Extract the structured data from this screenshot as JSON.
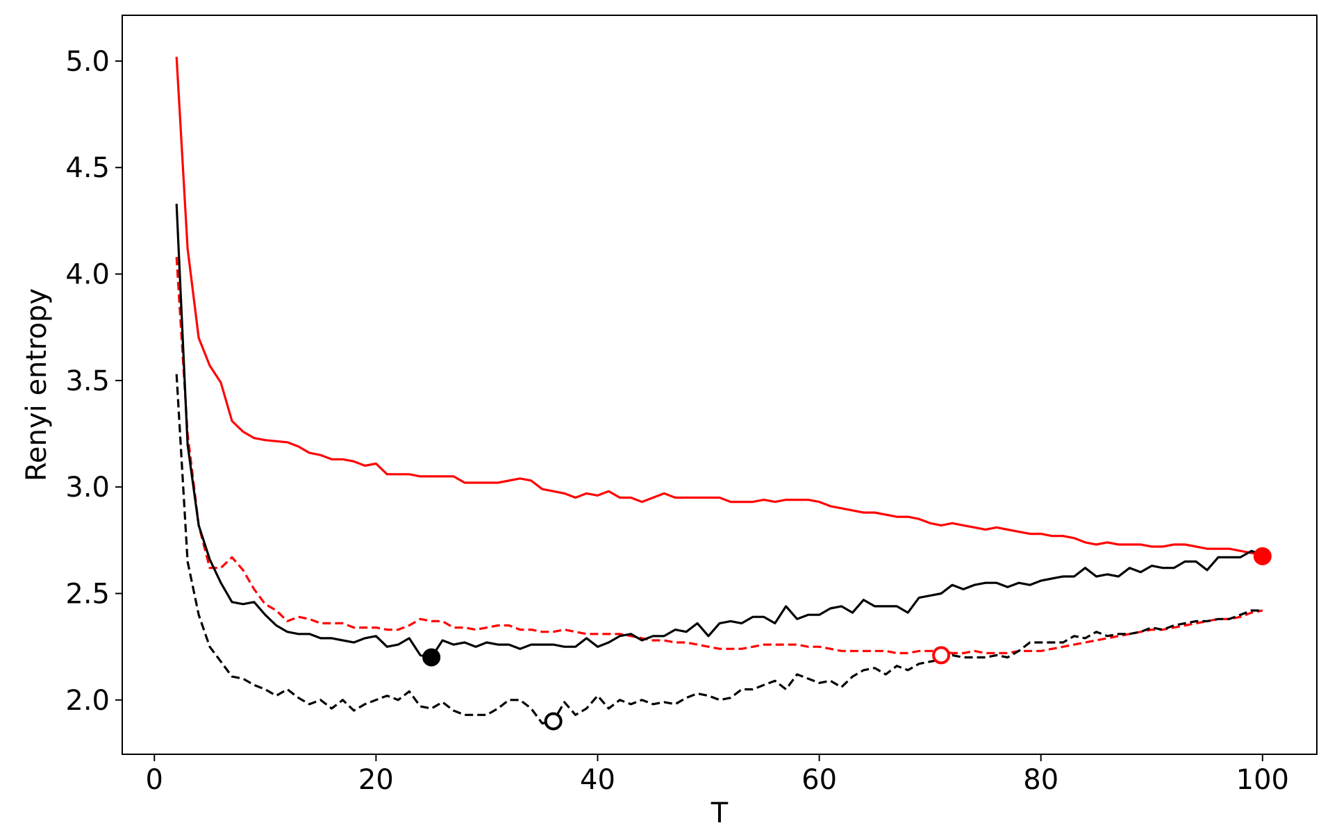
{
  "chart_data": {
    "type": "line",
    "title": "",
    "xlabel": "T",
    "ylabel": "Renyi entropy",
    "xlim": [
      -2.9,
      104.9
    ],
    "ylim": [
      1.745,
      5.215
    ],
    "xticks": [
      0,
      20,
      40,
      60,
      80,
      100
    ],
    "yticks": [
      2.0,
      2.5,
      3.0,
      3.5,
      4.0,
      4.5,
      5.0
    ],
    "grid": false,
    "colors": {
      "red": "#ff0000",
      "black": "#000000"
    },
    "series": [
      {
        "color": "#ff0000",
        "style": "solid",
        "x": [
          2,
          3,
          4,
          5,
          6,
          7,
          8,
          9,
          10,
          12,
          13,
          14,
          15,
          16,
          17,
          18,
          19,
          20,
          21,
          22,
          23,
          24,
          25,
          26,
          27,
          28,
          29,
          30,
          31,
          32,
          33,
          34,
          35,
          36,
          37,
          38,
          39,
          40,
          41,
          42,
          43,
          44,
          45,
          46,
          47,
          48,
          49,
          50,
          51,
          52,
          53,
          54,
          55,
          56,
          57,
          58,
          59,
          60,
          61,
          62,
          63,
          64,
          65,
          66,
          67,
          68,
          69,
          70,
          71,
          72,
          73,
          74,
          75,
          76,
          77,
          78,
          79,
          80,
          81,
          82,
          83,
          84,
          85,
          86,
          87,
          88,
          89,
          90,
          91,
          92,
          93,
          94,
          95,
          96,
          97,
          98,
          99,
          100
        ],
        "y": [
          5.02,
          4.12,
          3.7,
          3.57,
          3.49,
          3.31,
          3.26,
          3.23,
          3.22,
          3.21,
          3.19,
          3.16,
          3.15,
          3.13,
          3.13,
          3.12,
          3.1,
          3.11,
          3.06,
          3.06,
          3.06,
          3.05,
          3.05,
          3.05,
          3.05,
          3.02,
          3.02,
          3.02,
          3.02,
          3.03,
          3.04,
          3.03,
          2.99,
          2.98,
          2.97,
          2.95,
          2.97,
          2.96,
          2.98,
          2.95,
          2.95,
          2.93,
          2.95,
          2.97,
          2.95,
          2.95,
          2.95,
          2.95,
          2.95,
          2.93,
          2.93,
          2.93,
          2.94,
          2.93,
          2.94,
          2.94,
          2.94,
          2.93,
          2.91,
          2.9,
          2.89,
          2.88,
          2.88,
          2.87,
          2.86,
          2.86,
          2.85,
          2.83,
          2.82,
          2.83,
          2.82,
          2.81,
          2.8,
          2.81,
          2.8,
          2.79,
          2.78,
          2.78,
          2.77,
          2.77,
          2.76,
          2.74,
          2.73,
          2.74,
          2.73,
          2.73,
          2.73,
          2.72,
          2.72,
          2.73,
          2.73,
          2.72,
          2.71,
          2.71,
          2.71,
          2.7,
          2.69,
          2.68
        ]
      },
      {
        "color": "#ff0000",
        "style": "dashed",
        "x": [
          2,
          3,
          4,
          5,
          6,
          7,
          8,
          9,
          10,
          11,
          12,
          13,
          14,
          15,
          16,
          17,
          18,
          19,
          20,
          21,
          22,
          23,
          24,
          25,
          26,
          27,
          28,
          29,
          30,
          31,
          32,
          33,
          34,
          35,
          36,
          37,
          38,
          39,
          40,
          41,
          42,
          43,
          44,
          45,
          46,
          47,
          48,
          49,
          50,
          51,
          52,
          53,
          54,
          55,
          56,
          57,
          58,
          59,
          60,
          61,
          62,
          63,
          64,
          65,
          66,
          67,
          68,
          69,
          70,
          71,
          72,
          73,
          74,
          75,
          76,
          77,
          78,
          79,
          80,
          81,
          82,
          83,
          84,
          85,
          86,
          87,
          88,
          89,
          90,
          91,
          92,
          93,
          94,
          95,
          96,
          97,
          98,
          99,
          100
        ],
        "y": [
          4.08,
          3.25,
          2.82,
          2.62,
          2.62,
          2.67,
          2.61,
          2.52,
          2.45,
          2.42,
          2.37,
          2.39,
          2.38,
          2.36,
          2.36,
          2.36,
          2.34,
          2.34,
          2.34,
          2.33,
          2.33,
          2.35,
          2.38,
          2.37,
          2.37,
          2.34,
          2.34,
          2.33,
          2.34,
          2.35,
          2.35,
          2.33,
          2.33,
          2.32,
          2.32,
          2.33,
          2.32,
          2.31,
          2.31,
          2.31,
          2.31,
          2.3,
          2.29,
          2.28,
          2.28,
          2.27,
          2.27,
          2.26,
          2.25,
          2.24,
          2.24,
          2.24,
          2.25,
          2.26,
          2.26,
          2.26,
          2.26,
          2.25,
          2.25,
          2.24,
          2.23,
          2.23,
          2.23,
          2.23,
          2.23,
          2.22,
          2.22,
          2.23,
          2.23,
          2.23,
          2.22,
          2.22,
          2.23,
          2.22,
          2.22,
          2.22,
          2.23,
          2.23,
          2.23,
          2.24,
          2.25,
          2.26,
          2.27,
          2.28,
          2.29,
          2.3,
          2.31,
          2.32,
          2.33,
          2.33,
          2.34,
          2.35,
          2.36,
          2.37,
          2.38,
          2.38,
          2.39,
          2.41,
          2.42
        ]
      },
      {
        "color": "#000000",
        "style": "solid",
        "x": [
          2,
          3,
          4,
          5,
          6,
          7,
          8,
          9,
          10,
          11,
          12,
          13,
          14,
          15,
          16,
          17,
          18,
          19,
          20,
          21,
          22,
          23,
          24,
          25,
          26,
          27,
          28,
          29,
          30,
          31,
          32,
          33,
          34,
          35,
          36,
          37,
          38,
          39,
          40,
          41,
          42,
          43,
          44,
          45,
          46,
          47,
          48,
          49,
          50,
          51,
          52,
          53,
          54,
          55,
          56,
          57,
          58,
          59,
          60,
          61,
          62,
          63,
          64,
          65,
          66,
          67,
          68,
          69,
          70,
          71,
          72,
          73,
          74,
          75,
          76,
          77,
          78,
          79,
          80,
          81,
          82,
          83,
          84,
          85,
          86,
          87,
          88,
          89,
          90,
          91,
          92,
          93,
          94,
          95,
          96,
          97,
          98,
          99,
          100
        ],
        "y": [
          4.33,
          3.2,
          2.82,
          2.66,
          2.55,
          2.46,
          2.45,
          2.46,
          2.4,
          2.35,
          2.32,
          2.31,
          2.31,
          2.29,
          2.29,
          2.28,
          2.27,
          2.29,
          2.3,
          2.25,
          2.26,
          2.29,
          2.21,
          2.2,
          2.28,
          2.26,
          2.27,
          2.25,
          2.27,
          2.26,
          2.26,
          2.24,
          2.26,
          2.26,
          2.26,
          2.25,
          2.25,
          2.29,
          2.25,
          2.27,
          2.3,
          2.31,
          2.28,
          2.3,
          2.3,
          2.33,
          2.32,
          2.36,
          2.3,
          2.36,
          2.37,
          2.36,
          2.39,
          2.39,
          2.36,
          2.44,
          2.38,
          2.4,
          2.4,
          2.43,
          2.44,
          2.41,
          2.47,
          2.44,
          2.44,
          2.44,
          2.41,
          2.48,
          2.49,
          2.5,
          2.54,
          2.52,
          2.54,
          2.55,
          2.55,
          2.53,
          2.55,
          2.54,
          2.56,
          2.57,
          2.58,
          2.58,
          2.62,
          2.58,
          2.59,
          2.58,
          2.62,
          2.6,
          2.63,
          2.62,
          2.62,
          2.65,
          2.65,
          2.61,
          2.67,
          2.67,
          2.67,
          2.7,
          2.68
        ]
      },
      {
        "color": "#000000",
        "style": "dashed",
        "x": [
          2,
          3,
          4,
          5,
          6,
          7,
          8,
          9,
          10,
          11,
          12,
          13,
          14,
          15,
          16,
          17,
          18,
          19,
          20,
          21,
          22,
          23,
          24,
          25,
          26,
          27,
          28,
          29,
          30,
          31,
          32,
          33,
          34,
          35,
          36,
          37,
          38,
          39,
          40,
          41,
          42,
          43,
          44,
          45,
          46,
          47,
          48,
          49,
          50,
          51,
          52,
          53,
          54,
          55,
          56,
          57,
          58,
          59,
          60,
          61,
          62,
          63,
          64,
          65,
          66,
          67,
          68,
          69,
          70,
          71,
          72,
          73,
          74,
          75,
          76,
          77,
          78,
          79,
          80,
          81,
          82,
          83,
          84,
          85,
          86,
          87,
          88,
          89,
          90,
          91,
          92,
          93,
          94,
          95,
          96,
          97,
          98,
          99,
          100
        ],
        "y": [
          3.53,
          2.65,
          2.4,
          2.25,
          2.18,
          2.11,
          2.1,
          2.07,
          2.05,
          2.02,
          2.05,
          2.01,
          1.98,
          2.0,
          1.96,
          2.0,
          1.95,
          1.98,
          2.0,
          2.02,
          2.0,
          2.04,
          1.97,
          1.96,
          1.99,
          1.95,
          1.93,
          1.93,
          1.93,
          1.96,
          2.0,
          2.0,
          1.96,
          1.89,
          1.9,
          1.99,
          1.93,
          1.96,
          2.02,
          1.96,
          2.0,
          1.98,
          2.0,
          1.98,
          1.99,
          1.98,
          2.01,
          2.03,
          2.02,
          2.0,
          2.01,
          2.05,
          2.05,
          2.07,
          2.09,
          2.05,
          2.12,
          2.1,
          2.08,
          2.09,
          2.06,
          2.11,
          2.14,
          2.15,
          2.12,
          2.16,
          2.14,
          2.17,
          2.18,
          2.19,
          2.21,
          2.2,
          2.2,
          2.2,
          2.21,
          2.2,
          2.23,
          2.27,
          2.27,
          2.27,
          2.27,
          2.3,
          2.29,
          2.32,
          2.3,
          2.31,
          2.31,
          2.32,
          2.34,
          2.33,
          2.35,
          2.36,
          2.37,
          2.37,
          2.38,
          2.38,
          2.4,
          2.42,
          2.42
        ]
      }
    ],
    "markers": [
      {
        "x": 25,
        "y": 2.2,
        "color": "#000000",
        "filled": true
      },
      {
        "x": 36,
        "y": 1.9,
        "color": "#000000",
        "filled": false
      },
      {
        "x": 100,
        "y": 2.675,
        "color": "#ff0000",
        "filled": true
      },
      {
        "x": 71,
        "y": 2.21,
        "color": "#ff0000",
        "filled": false
      }
    ]
  }
}
